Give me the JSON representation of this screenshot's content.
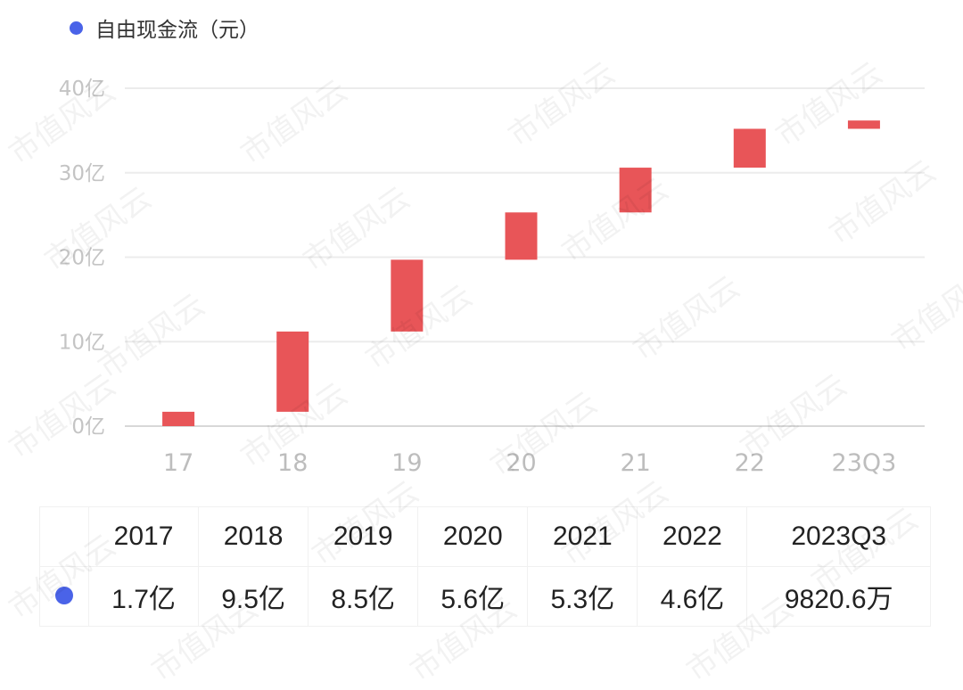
{
  "watermark": "市值风云",
  "chart_data": {
    "type": "waterfall",
    "title": "",
    "legend": [
      {
        "name": "自由现金流（元）",
        "color": "#4a63e8"
      }
    ],
    "legend_position": "top-left",
    "categories": [
      "17",
      "18",
      "19",
      "20",
      "21",
      "22",
      "23Q3"
    ],
    "values_yi": [
      1.7,
      9.5,
      8.5,
      5.6,
      5.3,
      4.6,
      0.982
    ],
    "bar_color": "#e85558",
    "ylim": [
      0,
      40
    ],
    "yticks": [
      "0亿",
      "10亿",
      "20亿",
      "30亿",
      "40亿"
    ],
    "grid": true
  },
  "table": {
    "headers": [
      "2017",
      "2018",
      "2019",
      "2020",
      "2021",
      "2022",
      "2023Q3"
    ],
    "values": [
      "1.7亿",
      "9.5亿",
      "8.5亿",
      "5.6亿",
      "5.3亿",
      "4.6亿",
      "9820.6万"
    ]
  }
}
